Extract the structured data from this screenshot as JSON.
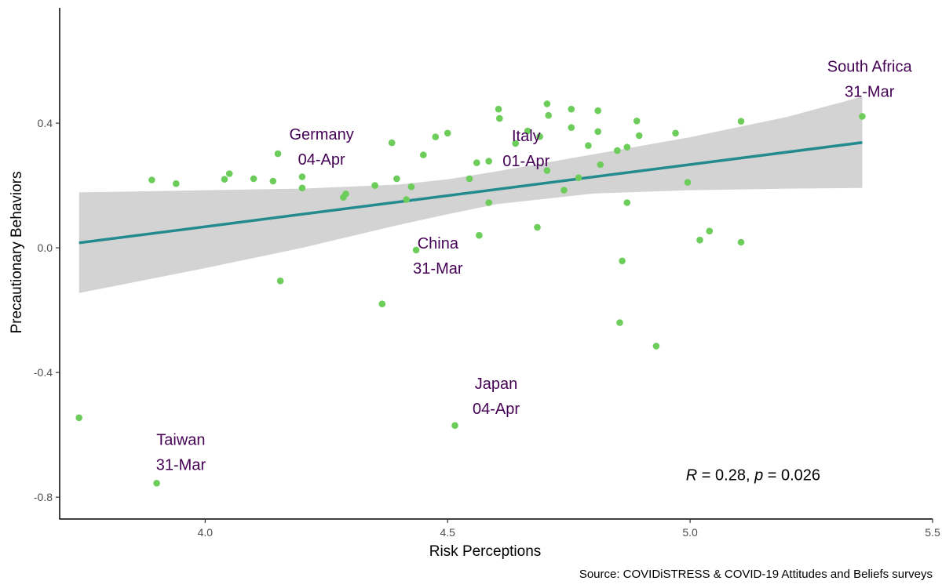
{
  "chart_data": {
    "type": "scatter",
    "title": "",
    "xlabel": "Risk Perceptions",
    "ylabel": "Precautionary Behaviors",
    "xlim": [
      3.7,
      5.5
    ],
    "ylim": [
      -0.87,
      0.77
    ],
    "xticks": [
      4.0,
      4.5,
      5.0,
      5.5
    ],
    "xtick_labels": [
      "4.0",
      "4.5",
      "5.0",
      "5.5"
    ],
    "yticks": [
      -0.8,
      -0.4,
      0.0,
      0.4
    ],
    "ytick_labels": [
      "-0.8",
      "-0.4",
      "0.0",
      "0.4"
    ],
    "grid": false,
    "point_color": "#6ccd5a",
    "line_color": "#238b8e",
    "band_color": "#d3d3d3",
    "label_color": "#440154",
    "points": [
      [
        3.74,
        -0.545
      ],
      [
        3.89,
        0.218
      ],
      [
        3.9,
        -0.755
      ],
      [
        3.94,
        0.206
      ],
      [
        4.04,
        0.22
      ],
      [
        4.05,
        0.238
      ],
      [
        4.1,
        0.222
      ],
      [
        4.14,
        0.214
      ],
      [
        4.15,
        0.302
      ],
      [
        4.155,
        -0.106
      ],
      [
        4.2,
        0.228
      ],
      [
        4.2,
        0.192
      ],
      [
        4.285,
        0.162
      ],
      [
        4.29,
        0.173
      ],
      [
        4.35,
        0.2
      ],
      [
        4.365,
        -0.18
      ],
      [
        4.385,
        0.337
      ],
      [
        4.395,
        0.222
      ],
      [
        4.415,
        0.155
      ],
      [
        4.425,
        0.196
      ],
      [
        4.435,
        -0.007
      ],
      [
        4.45,
        0.298
      ],
      [
        4.475,
        0.356
      ],
      [
        4.5,
        0.368
      ],
      [
        4.515,
        -0.57
      ],
      [
        4.545,
        0.222
      ],
      [
        4.56,
        0.273
      ],
      [
        4.565,
        0.04
      ],
      [
        4.585,
        0.278
      ],
      [
        4.585,
        0.145
      ],
      [
        4.605,
        0.445
      ],
      [
        4.607,
        0.415
      ],
      [
        4.64,
        0.335
      ],
      [
        4.665,
        0.375
      ],
      [
        4.685,
        0.066
      ],
      [
        4.69,
        0.357
      ],
      [
        4.705,
        0.462
      ],
      [
        4.705,
        0.248
      ],
      [
        4.708,
        0.425
      ],
      [
        4.74,
        0.185
      ],
      [
        4.755,
        0.445
      ],
      [
        4.755,
        0.386
      ],
      [
        4.77,
        0.225
      ],
      [
        4.79,
        0.328
      ],
      [
        4.81,
        0.373
      ],
      [
        4.81,
        0.44
      ],
      [
        4.815,
        0.267
      ],
      [
        4.85,
        0.312
      ],
      [
        4.855,
        -0.24
      ],
      [
        4.86,
        -0.042
      ],
      [
        4.87,
        0.323
      ],
      [
        4.87,
        0.145
      ],
      [
        4.89,
        0.407
      ],
      [
        4.895,
        0.36
      ],
      [
        4.93,
        -0.315
      ],
      [
        4.97,
        0.368
      ],
      [
        4.995,
        0.21
      ],
      [
        5.02,
        0.025
      ],
      [
        5.04,
        0.054
      ],
      [
        5.105,
        0.018
      ],
      [
        5.105,
        0.406
      ],
      [
        5.355,
        0.422
      ]
    ],
    "trend_line": {
      "x": [
        3.74,
        5.355
      ],
      "y": [
        0.016,
        0.338
      ]
    },
    "confidence_band": {
      "x": [
        3.74,
        4.0,
        4.2,
        4.4,
        4.5,
        4.6,
        4.8,
        5.0,
        5.2,
        5.355
      ],
      "upper": [
        0.178,
        0.185,
        0.19,
        0.203,
        0.22,
        0.245,
        0.3,
        0.355,
        0.42,
        0.485
      ],
      "lower": [
        -0.145,
        -0.065,
        0.0,
        0.074,
        0.108,
        0.14,
        0.174,
        0.185,
        0.19,
        0.192
      ]
    },
    "annotations": [
      {
        "country": "South Africa",
        "date": "31-Mar",
        "x": 5.37,
        "y": 0.565
      },
      {
        "country": "Germany",
        "date": "04-Apr",
        "x": 4.24,
        "y": 0.348
      },
      {
        "country": "Italy",
        "date": "01-Apr",
        "x": 4.662,
        "y": 0.343
      },
      {
        "country": "China",
        "date": "31-Mar",
        "x": 4.48,
        "y": -0.002
      },
      {
        "country": "Japan",
        "date": "04-Apr",
        "x": 4.6,
        "y": -0.453
      },
      {
        "country": "Taiwan",
        "date": "31-Mar",
        "x": 3.95,
        "y": -0.632
      }
    ],
    "stat": {
      "r_symbol": "R",
      "r_text": " = 0.28, ",
      "p_symbol": "p",
      "p_text": " = 0.026",
      "x": 5.13,
      "y": -0.745
    },
    "caption": "Source: COVIDiSTRESS & COVID-19 Attitudes and Beliefs surveys"
  }
}
